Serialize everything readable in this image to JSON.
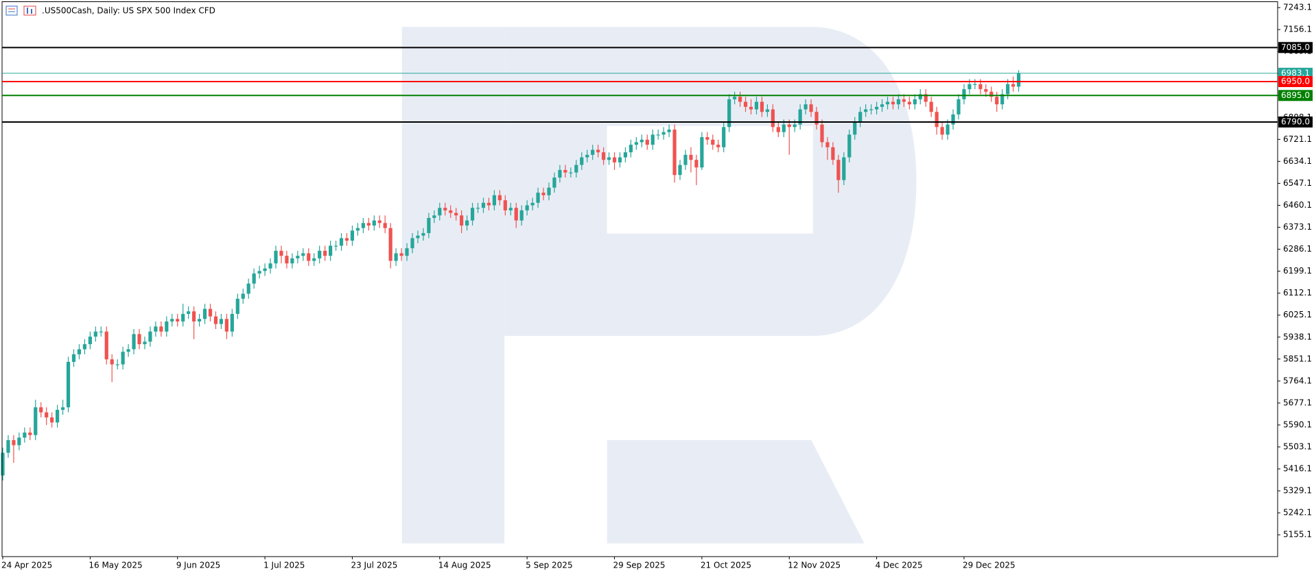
{
  "chart_data": {
    "type": "candlestick",
    "title": ".US500Cash, Daily:  US SPX 500 Index CFD",
    "up_color": "#26a69a",
    "down_color": "#ef5350",
    "ylim": [
      5068.7,
      7266.4
    ],
    "yticks": [
      5155.1,
      5242.1,
      5329.1,
      5416.1,
      5503.1,
      5590.1,
      5677.1,
      5764.1,
      5851.1,
      5938.1,
      6025.1,
      6112.1,
      6199.1,
      6286.1,
      6373.1,
      6460.1,
      6547.1,
      6634.1,
      6721.1,
      6808.1,
      6895.1,
      6982.1,
      7069.1,
      7156.1,
      7243.1
    ],
    "levels": [
      {
        "value": 7085,
        "label": "7085.0",
        "color": "#000000"
      },
      {
        "value": 6983.1,
        "color": "#26a69a"
      },
      {
        "value": 6950,
        "label": "6950.0",
        "color": "#ff0000"
      },
      {
        "value": 6895,
        "label": "6895.0",
        "color": "#008000"
      },
      {
        "value": 6790,
        "label": "6790.0",
        "color": "#000000"
      }
    ],
    "categories": [
      "24 Apr 2025",
      null,
      null,
      null,
      null,
      null,
      null,
      null,
      null,
      null,
      null,
      null,
      null,
      null,
      null,
      null,
      "16 May 2025",
      null,
      null,
      null,
      null,
      null,
      null,
      null,
      null,
      null,
      null,
      null,
      null,
      null,
      null,
      null,
      "9 Jun 2025",
      null,
      null,
      null,
      null,
      null,
      null,
      null,
      null,
      null,
      null,
      null,
      null,
      null,
      null,
      null,
      "1 Jul 2025",
      null,
      null,
      null,
      null,
      null,
      null,
      null,
      null,
      null,
      null,
      null,
      null,
      null,
      null,
      null,
      "23 Jul 2025",
      null,
      null,
      null,
      null,
      null,
      null,
      null,
      null,
      null,
      null,
      null,
      null,
      null,
      null,
      null,
      "14 Aug 2025",
      null,
      null,
      null,
      null,
      null,
      null,
      null,
      null,
      null,
      null,
      null,
      null,
      null,
      null,
      null,
      "5 Sep 2025",
      null,
      null,
      null,
      null,
      null,
      null,
      null,
      null,
      null,
      null,
      null,
      null,
      null,
      null,
      null,
      "29 Sep 2025",
      null,
      null,
      null,
      null,
      null,
      null,
      null,
      null,
      null,
      null,
      null,
      null,
      null,
      null,
      null,
      "21 Oct 2025",
      null,
      null,
      null,
      null,
      null,
      null,
      null,
      null,
      null,
      null,
      null,
      null,
      null,
      null,
      null,
      "12 Nov 2025",
      null,
      null,
      null,
      null,
      null,
      null,
      null,
      null,
      null,
      null,
      null,
      null,
      null,
      null,
      null,
      "4 Dec 2025",
      null,
      null,
      null,
      null,
      null,
      null,
      null,
      null,
      null,
      null,
      null,
      null,
      null,
      null,
      null,
      "29 Dec 2025",
      null,
      null,
      null,
      null,
      null,
      null,
      null,
      null,
      null,
      null
    ],
    "open": [
      5390,
      5480,
      5530,
      5510,
      5540,
      5560,
      5550,
      5660,
      5640,
      5620,
      5600,
      5650,
      5660,
      5840,
      5870,
      5890,
      5910,
      5940,
      5960,
      5960,
      5850,
      5830,
      5830,
      5880,
      5890,
      5950,
      5910,
      5920,
      5960,
      5980,
      5960,
      6000,
      6010,
      6000,
      6030,
      6040,
      6000,
      6010,
      6050,
      6020,
      5990,
      6010,
      5960,
      6030,
      6090,
      6110,
      6150,
      6190,
      6200,
      6210,
      6230,
      6280,
      6260,
      6230,
      6250,
      6260,
      6270,
      6240,
      6250,
      6280,
      6260,
      6300,
      6300,
      6330,
      6320,
      6360,
      6370,
      6390,
      6380,
      6400,
      6390,
      6370,
      6240,
      6270,
      6260,
      6290,
      6330,
      6340,
      6350,
      6410,
      6420,
      6450,
      6440,
      6430,
      6420,
      6380,
      6400,
      6450,
      6450,
      6470,
      6460,
      6500,
      6480,
      6440,
      6450,
      6400,
      6440,
      6460,
      6470,
      6510,
      6500,
      6530,
      6570,
      6600,
      6590,
      6590,
      6620,
      6650,
      6660,
      6680,
      6670,
      6640,
      6650,
      6630,
      6650,
      6670,
      6700,
      6710,
      6720,
      6700,
      6740,
      6740,
      6750,
      6760,
      6580,
      6620,
      6660,
      6640,
      6610,
      6730,
      6720,
      6700,
      6690,
      6770,
      6880,
      6890,
      6870,
      6850,
      6840,
      6870,
      6830,
      6840,
      6770,
      6750,
      6780,
      6770,
      6780,
      6840,
      6860,
      6830,
      6780,
      6710,
      6690,
      6640,
      6560,
      6650,
      6740,
      6790,
      6830,
      6840,
      6840,
      6850,
      6860,
      6870,
      6860,
      6880,
      6870,
      6860,
      6880,
      6900,
      6870,
      6830,
      6770,
      6740,
      6780,
      6820,
      6880,
      6920,
      6940,
      6940,
      6920,
      6910,
      6890,
      6860,
      6900,
      6940,
      6930
    ],
    "high": [
      5500,
      5550,
      5550,
      5560,
      5580,
      5580,
      5690,
      5680,
      5660,
      5640,
      5670,
      5690,
      5860,
      5890,
      5910,
      5930,
      5960,
      5980,
      5980,
      5980,
      5870,
      5850,
      5900,
      5910,
      5970,
      5970,
      5940,
      5980,
      6000,
      6000,
      6020,
      6030,
      6030,
      6070,
      6060,
      6060,
      6030,
      6070,
      6070,
      6040,
      6030,
      6030,
      6050,
      6110,
      6130,
      6170,
      6210,
      6220,
      6230,
      6250,
      6300,
      6300,
      6280,
      6270,
      6280,
      6290,
      6290,
      6270,
      6300,
      6300,
      6320,
      6320,
      6350,
      6350,
      6380,
      6390,
      6410,
      6410,
      6420,
      6420,
      6420,
      6390,
      6290,
      6290,
      6310,
      6350,
      6360,
      6370,
      6430,
      6440,
      6470,
      6470,
      6460,
      6450,
      6440,
      6420,
      6470,
      6470,
      6490,
      6490,
      6520,
      6520,
      6500,
      6470,
      6470,
      6460,
      6480,
      6490,
      6530,
      6530,
      6550,
      6590,
      6620,
      6620,
      6610,
      6640,
      6670,
      6680,
      6700,
      6700,
      6690,
      6670,
      6670,
      6670,
      6690,
      6720,
      6730,
      6740,
      6740,
      6760,
      6760,
      6770,
      6780,
      6780,
      6640,
      6680,
      6690,
      6660,
      6750,
      6750,
      6740,
      6720,
      6790,
      6900,
      6910,
      6910,
      6890,
      6880,
      6890,
      6890,
      6860,
      6860,
      6790,
      6800,
      6800,
      6800,
      6860,
      6880,
      6880,
      6850,
      6800,
      6730,
      6710,
      6660,
      6670,
      6760,
      6810,
      6850,
      6860,
      6860,
      6870,
      6880,
      6890,
      6890,
      6900,
      6900,
      6890,
      6900,
      6920,
      6920,
      6890,
      6850,
      6790,
      6800,
      6840,
      6900,
      6940,
      6960,
      6960,
      6960,
      6940,
      6930,
      6910,
      6920,
      6960,
      6970,
      6995
    ],
    "low": [
      5370,
      5460,
      5440,
      5490,
      5520,
      5530,
      5530,
      5620,
      5590,
      5580,
      5580,
      5630,
      5640,
      5820,
      5850,
      5870,
      5890,
      5920,
      5940,
      5830,
      5760,
      5810,
      5810,
      5860,
      5870,
      5890,
      5890,
      5900,
      5940,
      5940,
      5940,
      5980,
      5980,
      5980,
      6010,
      5930,
      5980,
      5990,
      6000,
      5970,
      5970,
      5930,
      5940,
      6010,
      6070,
      6090,
      6130,
      6170,
      6180,
      6190,
      6210,
      6230,
      6210,
      6210,
      6230,
      6240,
      6220,
      6220,
      6230,
      6240,
      6240,
      6280,
      6280,
      6300,
      6300,
      6340,
      6350,
      6360,
      6360,
      6370,
      6350,
      6210,
      6220,
      6240,
      6240,
      6270,
      6310,
      6320,
      6330,
      6390,
      6400,
      6420,
      6410,
      6400,
      6350,
      6360,
      6380,
      6430,
      6430,
      6440,
      6440,
      6460,
      6420,
      6420,
      6370,
      6380,
      6420,
      6440,
      6450,
      6480,
      6480,
      6510,
      6550,
      6570,
      6570,
      6570,
      6600,
      6630,
      6640,
      6650,
      6620,
      6620,
      6600,
      6610,
      6630,
      6650,
      6680,
      6690,
      6680,
      6680,
      6720,
      6720,
      6730,
      6550,
      6560,
      6600,
      6590,
      6540,
      6600,
      6700,
      6680,
      6670,
      6670,
      6750,
      6860,
      6850,
      6830,
      6820,
      6820,
      6810,
      6810,
      6750,
      6730,
      6730,
      6660,
      6750,
      6760,
      6820,
      6810,
      6760,
      6690,
      6640,
      6620,
      6510,
      6540,
      6630,
      6720,
      6770,
      6810,
      6820,
      6820,
      6830,
      6840,
      6840,
      6840,
      6850,
      6840,
      6840,
      6860,
      6850,
      6810,
      6740,
      6720,
      6720,
      6760,
      6800,
      6860,
      6900,
      6920,
      6900,
      6890,
      6870,
      6830,
      6840,
      6880,
      6910,
      6910
    ],
    "close": [
      5480,
      5530,
      5510,
      5540,
      5560,
      5550,
      5660,
      5640,
      5620,
      5600,
      5650,
      5660,
      5840,
      5870,
      5890,
      5910,
      5940,
      5960,
      5960,
      5850,
      5830,
      5830,
      5880,
      5890,
      5950,
      5910,
      5920,
      5960,
      5980,
      5960,
      6000,
      6010,
      6000,
      6030,
      6040,
      6000,
      6010,
      6050,
      6020,
      5990,
      6010,
      5960,
      6030,
      6090,
      6110,
      6150,
      6190,
      6200,
      6210,
      6230,
      6280,
      6260,
      6230,
      6250,
      6260,
      6270,
      6240,
      6250,
      6280,
      6260,
      6300,
      6300,
      6330,
      6320,
      6360,
      6370,
      6390,
      6380,
      6400,
      6390,
      6370,
      6240,
      6270,
      6260,
      6290,
      6330,
      6340,
      6350,
      6410,
      6420,
      6450,
      6440,
      6430,
      6420,
      6380,
      6400,
      6450,
      6450,
      6470,
      6460,
      6500,
      6480,
      6440,
      6450,
      6400,
      6440,
      6460,
      6470,
      6510,
      6500,
      6530,
      6570,
      6600,
      6590,
      6590,
      6620,
      6650,
      6660,
      6680,
      6670,
      6640,
      6650,
      6630,
      6650,
      6670,
      6700,
      6710,
      6720,
      6700,
      6740,
      6740,
      6750,
      6760,
      6580,
      6620,
      6660,
      6640,
      6610,
      6730,
      6720,
      6700,
      6690,
      6770,
      6880,
      6890,
      6870,
      6850,
      6840,
      6870,
      6830,
      6840,
      6770,
      6750,
      6780,
      6770,
      6780,
      6840,
      6860,
      6830,
      6780,
      6710,
      6690,
      6640,
      6560,
      6650,
      6740,
      6790,
      6830,
      6840,
      6840,
      6850,
      6860,
      6870,
      6860,
      6880,
      6870,
      6860,
      6880,
      6900,
      6870,
      6830,
      6770,
      6740,
      6780,
      6820,
      6880,
      6920,
      6940,
      6940,
      6920,
      6910,
      6890,
      6860,
      6900,
      6940,
      6930,
      6983.1
    ]
  }
}
